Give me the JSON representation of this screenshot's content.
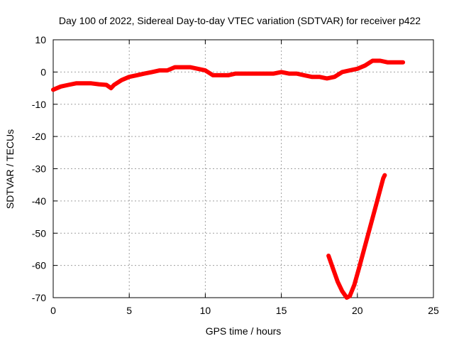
{
  "chart_data": {
    "type": "line",
    "title": "Day 100 of 2022, Sidereal Day-to-day VTEC variation (SDTVAR) for receiver p422",
    "xlabel": "GPS time / hours",
    "ylabel": "SDTVAR / TECUs",
    "xlim": [
      0,
      25
    ],
    "ylim": [
      -70,
      10
    ],
    "xticks": [
      0,
      5,
      10,
      15,
      20,
      25
    ],
    "yticks": [
      10,
      0,
      -10,
      -20,
      -30,
      -40,
      -50,
      -60,
      -70
    ],
    "grid": true,
    "legend": "none",
    "series": [
      {
        "color": "#ff0000",
        "x": [
          0,
          0.5,
          1,
          1.5,
          2,
          2.5,
          3,
          3.5,
          3.8,
          4,
          4.5,
          5,
          5.5,
          6,
          6.5,
          7,
          7.5,
          8,
          8.5,
          9,
          9.5,
          10,
          10.5,
          11,
          11.5,
          12,
          12.5,
          13,
          13.5,
          14,
          14.5,
          15,
          15.5,
          16,
          16.5,
          17,
          17.5,
          18,
          18.5,
          19,
          19.5,
          20,
          20.5,
          21,
          21.5,
          22,
          22.5,
          23
        ],
        "y": [
          -5.5,
          -4.5,
          -4,
          -3.5,
          -3.5,
          -3.5,
          -3.8,
          -4,
          -5,
          -4,
          -2.5,
          -1.5,
          -1,
          -0.5,
          0,
          0.5,
          0.5,
          1.5,
          1.5,
          1.5,
          1,
          0.5,
          -1,
          -1,
          -1,
          -0.5,
          -0.5,
          -0.5,
          -0.5,
          -0.5,
          -0.5,
          0,
          -0.5,
          -0.5,
          -1,
          -1.5,
          -1.5,
          -2,
          -1.5,
          0,
          0.5,
          1,
          2,
          3.5,
          3.5,
          3,
          3,
          3
        ]
      },
      {
        "color": "#ff0000",
        "x": [
          18.1,
          18.4,
          18.7,
          19.0,
          19.3,
          19.5,
          19.8,
          20.1,
          20.5,
          20.9,
          21.3,
          21.7,
          21.8
        ],
        "y": [
          -57,
          -61,
          -65,
          -68,
          -70,
          -69.5,
          -66,
          -61,
          -54,
          -47,
          -40,
          -33,
          -32
        ]
      }
    ]
  }
}
